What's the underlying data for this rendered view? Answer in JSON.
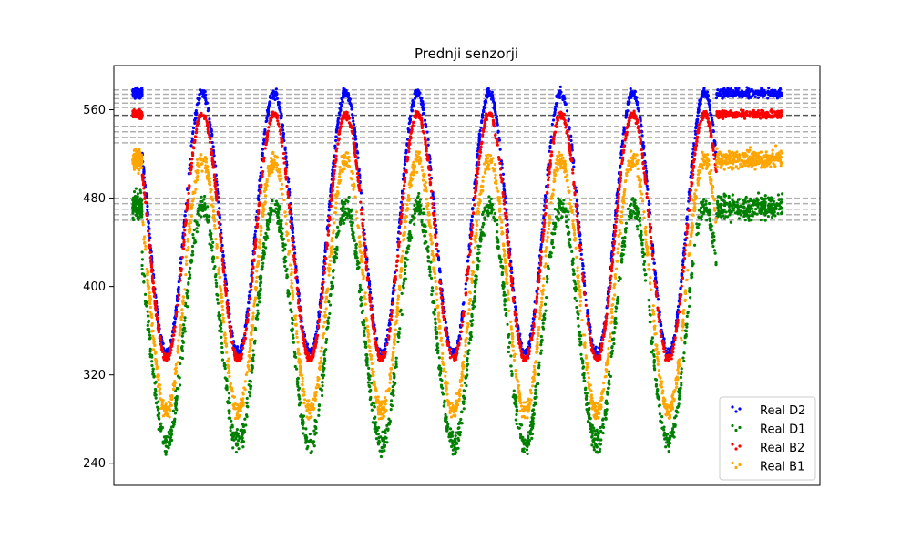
{
  "chart_data": {
    "type": "scatter",
    "title": "Prednji senzorji",
    "xlabel": "",
    "ylabel": "",
    "xlim": [
      0,
      3750
    ],
    "ylim": [
      220,
      600
    ],
    "yticks": [
      240,
      320,
      400,
      480,
      560
    ],
    "show_xticks": false,
    "grid": false,
    "legend_position": "lower-right",
    "reference_lines": {
      "dashed_gray": [
        578,
        574,
        570,
        566,
        562,
        545,
        540,
        535,
        530,
        480,
        475,
        470,
        465,
        460
      ],
      "dashed_dark": [
        555
      ]
    },
    "series": [
      {
        "name": "Real D2",
        "color": "#0000ff",
        "baseline": 575,
        "trough": 340,
        "start_plateau_end": 150,
        "end_plateau_start": 3200,
        "points_per_cycle": 260,
        "plateau_points": 140,
        "noise": 3
      },
      {
        "name": "Real D1",
        "color": "#008000",
        "baseline": 472,
        "trough": 258,
        "start_plateau_end": 150,
        "end_plateau_start": 3200,
        "points_per_cycle": 260,
        "plateau_points": 140,
        "noise": 8
      },
      {
        "name": "Real B2",
        "color": "#ff0000",
        "baseline": 556,
        "trough": 335,
        "start_plateau_end": 150,
        "end_plateau_start": 3200,
        "points_per_cycle": 260,
        "plateau_points": 140,
        "noise": 2.5
      },
      {
        "name": "Real B1",
        "color": "#ffa500",
        "baseline": 515,
        "trough": 288,
        "start_plateau_end": 150,
        "end_plateau_start": 3200,
        "points_per_cycle": 260,
        "plateau_points": 140,
        "noise": 6
      }
    ],
    "cycles": {
      "count": 8,
      "period": 381,
      "first_peak": 470,
      "x_start": 150,
      "x_end": 3200
    }
  }
}
